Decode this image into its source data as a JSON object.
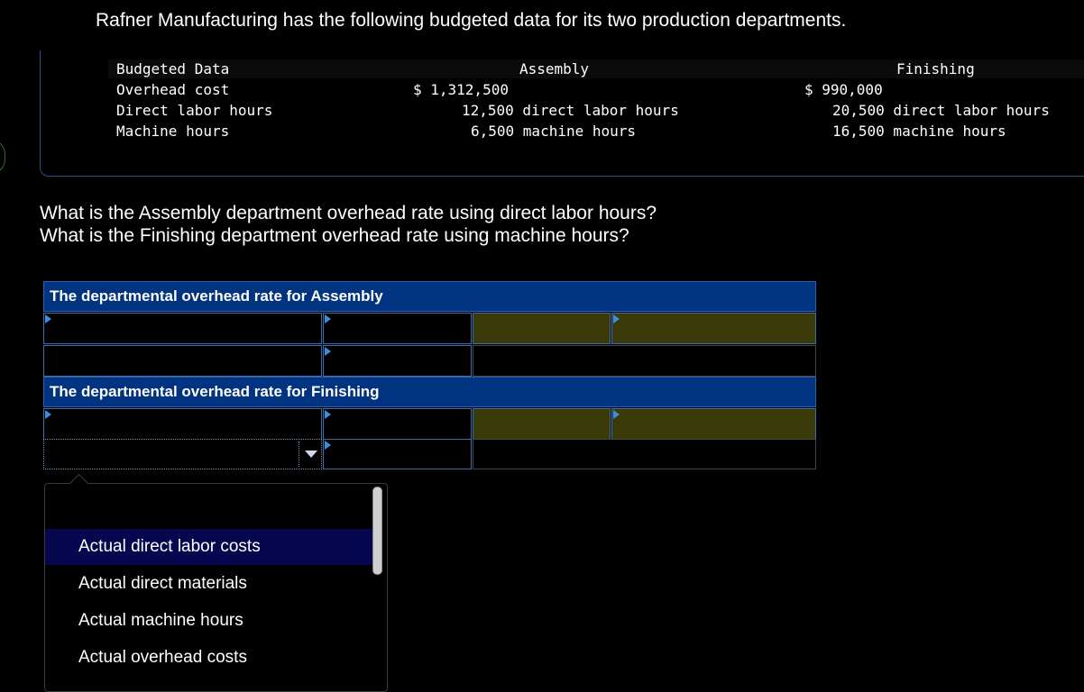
{
  "intro": "Rafner Manufacturing has the following budgeted data for its two production departments.",
  "budget_table": {
    "header": {
      "label": "Budgeted Data",
      "assembly": "Assembly",
      "finishing": "Finishing"
    },
    "rows": [
      {
        "label": "Overhead cost",
        "assembly": "$ 1,312,500",
        "finishing": "$ 990,000"
      },
      {
        "label": "Direct labor hours",
        "assembly": "12,500 direct labor hours",
        "finishing": "20,500 direct labor hours"
      },
      {
        "label": "Machine hours",
        "assembly": "6,500 machine hours",
        "finishing": "16,500 machine hours"
      }
    ]
  },
  "questions": [
    "What is the Assembly department overhead rate using direct labor hours?",
    "What is the Finishing department overhead rate using machine hours?"
  ],
  "answer_grid": {
    "assembly_title": "The departmental overhead rate for Assembly",
    "finishing_title": "The departmental overhead rate for Finishing"
  },
  "dropdown": {
    "selected": "",
    "options": [
      "Actual direct labor costs",
      "Actual direct materials",
      "Actual machine hours",
      "Actual overhead costs"
    ],
    "highlighted_index": 0
  },
  "colors": {
    "band": "#003380",
    "olive_cell": "#3a3a08",
    "highlight": "#070750"
  }
}
